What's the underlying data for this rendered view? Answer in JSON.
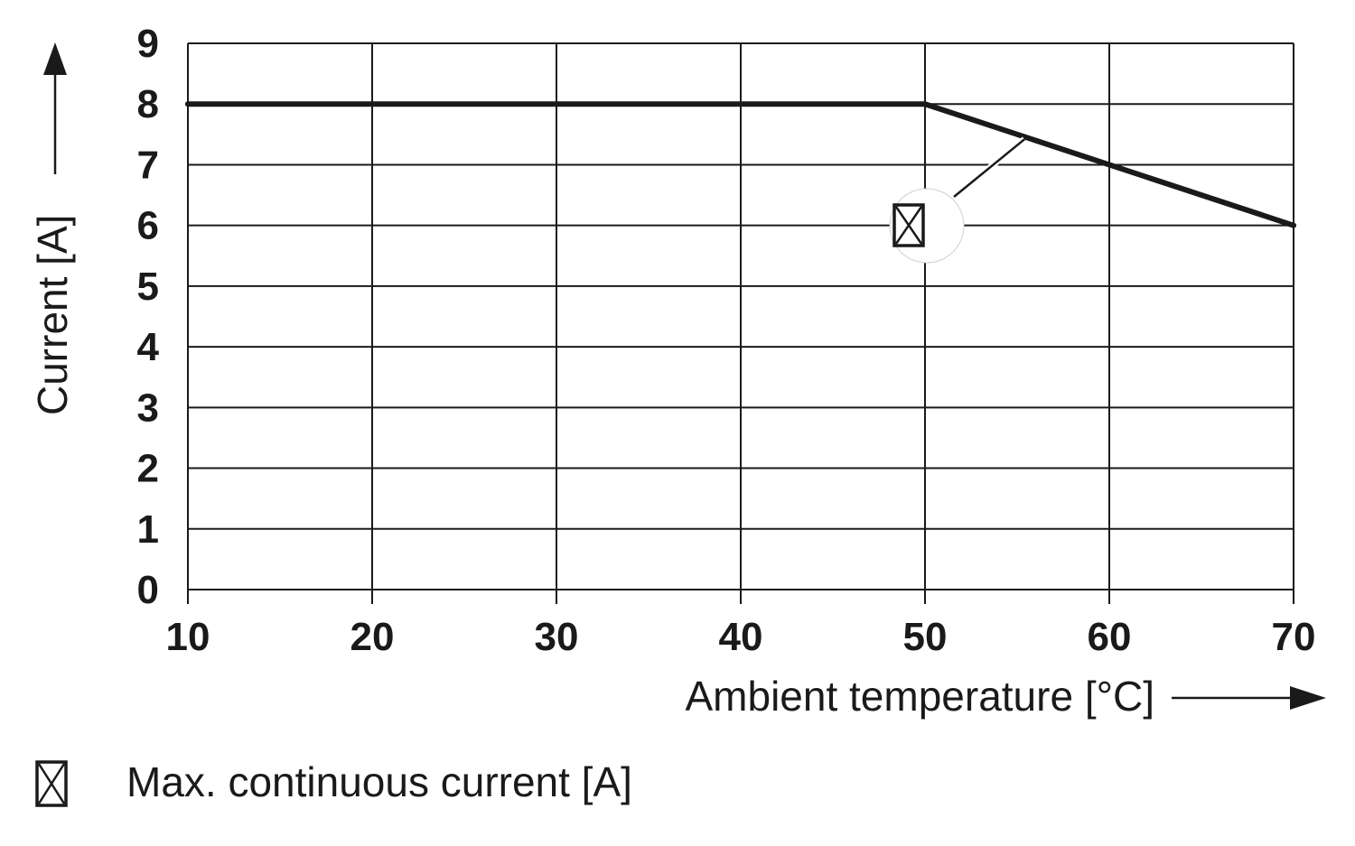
{
  "chart_data": {
    "type": "line",
    "x": [
      10,
      50,
      70
    ],
    "series": [
      {
        "name": "Max. continuous current [A]",
        "values": [
          8,
          8,
          6
        ],
        "color": "#1a1a1a",
        "marker": "boxed-x-icon"
      }
    ],
    "xlabel": "Ambient temperature [°C]",
    "ylabel": "Current [A]",
    "xlim": [
      10,
      70
    ],
    "ylim": [
      0,
      9
    ],
    "xticks": [
      10,
      20,
      30,
      40,
      50,
      60,
      70
    ],
    "yticks": [
      0,
      1,
      2,
      3,
      4,
      5,
      6,
      7,
      8,
      9
    ],
    "grid": true,
    "legend": "bottom-left",
    "annotation": {
      "points_to": [
        55.5,
        7.45
      ],
      "marker": "boxed-x-icon"
    }
  },
  "legend": {
    "label": "Max. continuous current [A]"
  }
}
